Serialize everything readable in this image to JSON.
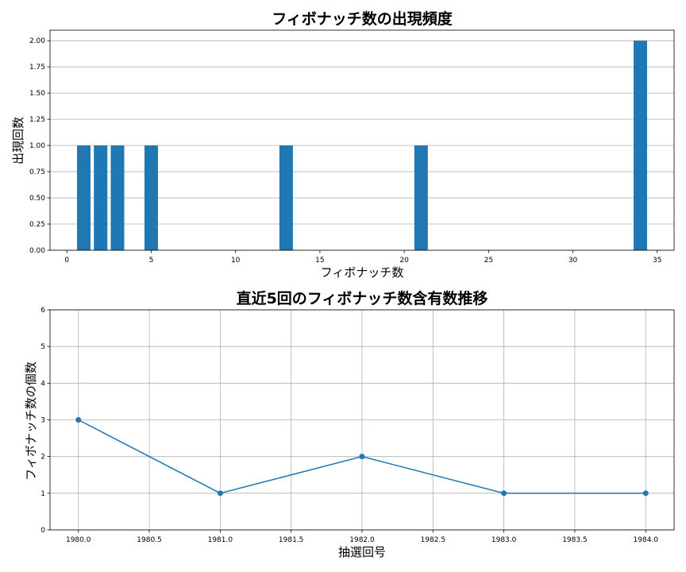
{
  "chart_data": [
    {
      "type": "bar",
      "title": "フィボナッチ数の出現頻度",
      "xlabel": "フィボナッチ数",
      "ylabel": "出現回数",
      "x": [
        1,
        2,
        3,
        5,
        13,
        21,
        34
      ],
      "values": [
        1,
        1,
        1,
        1,
        1,
        1,
        2
      ],
      "xlim": [
        -1,
        36
      ],
      "ylim": [
        0,
        2.1
      ],
      "xticks": [
        0,
        5,
        10,
        15,
        20,
        25,
        30,
        35
      ],
      "xtick_labels": [
        "0",
        "5",
        "10",
        "15",
        "20",
        "25",
        "30",
        "35"
      ],
      "yticks": [
        0,
        0.25,
        0.5,
        0.75,
        1.0,
        1.25,
        1.5,
        1.75,
        2.0
      ],
      "ytick_labels": [
        "0.00",
        "0.25",
        "0.50",
        "0.75",
        "1.00",
        "1.25",
        "1.50",
        "1.75",
        "2.00"
      ],
      "grid": "y",
      "color": "#1f77b4"
    },
    {
      "type": "line",
      "title": "直近5回のフィボナッチ数含有数推移",
      "xlabel": "抽選回号",
      "ylabel": "フィボナッチ数の個数",
      "x": [
        1980,
        1981,
        1982,
        1983,
        1984
      ],
      "values": [
        3,
        1,
        2,
        1,
        1
      ],
      "xlim": [
        1979.8,
        1984.2
      ],
      "ylim": [
        0,
        6
      ],
      "xticks": [
        1980,
        1980.5,
        1981,
        1981.5,
        1982,
        1982.5,
        1983,
        1983.5,
        1984
      ],
      "xtick_labels": [
        "1980.0",
        "1980.5",
        "1981.0",
        "1981.5",
        "1982.0",
        "1982.5",
        "1983.0",
        "1983.5",
        "1984.0"
      ],
      "yticks": [
        0,
        1,
        2,
        3,
        4,
        5,
        6
      ],
      "ytick_labels": [
        "0",
        "1",
        "2",
        "3",
        "4",
        "5",
        "6"
      ],
      "grid": "both",
      "color": "#1f77b4"
    }
  ]
}
